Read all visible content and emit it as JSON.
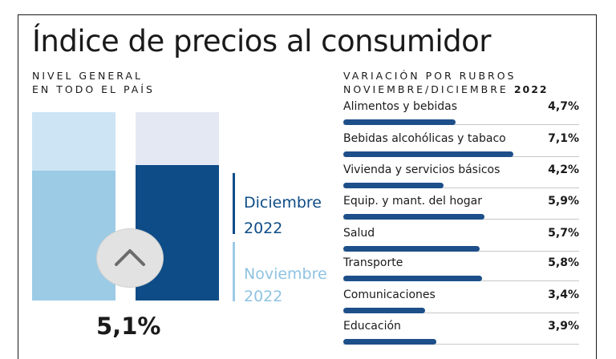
{
  "title": "Índice de precios al consumidor",
  "left_subtitle": [
    "NIVEL GENERAL",
    "EN TODO EL PAÍS"
  ],
  "right_subtitle": {
    "line1": "VARIACIÓN POR RUBROS",
    "line2": "NOVIEMBRE/DICIEMBRE",
    "year": "2022"
  },
  "legend": {
    "dec_month": "Diciembre",
    "dec_year": "2022",
    "nov_month": "Noviembre",
    "nov_year": "2022"
  },
  "general_value": "5,1%",
  "colors": {
    "dark_blue": "#0e4c87",
    "light_blue": "#9ccbe6",
    "pale_blue": "#cde4f4",
    "pale_gray": "#e4e8f2",
    "bar_blue": "#1d4f8a"
  },
  "icons": {
    "toggle": "chevron-up-icon"
  },
  "chart_data": [
    {
      "type": "bar",
      "series": [
        {
          "name": "Noviembre 2022",
          "value": 4.9
        },
        {
          "name": "Diciembre 2022",
          "value": 5.1
        }
      ],
      "ylim": [
        0,
        7.1
      ]
    },
    {
      "type": "bar",
      "orientation": "horizontal",
      "categories": [
        "Alimentos y bebidas",
        "Bebidas alcohólicas y tabaco",
        "Vivienda y servicios básicos",
        "Equip. y mant. del hogar",
        "Salud",
        "Transporte",
        "Comunicaciones",
        "Educación"
      ],
      "values": [
        4.7,
        7.1,
        4.2,
        5.9,
        5.7,
        5.8,
        3.4,
        3.9
      ],
      "value_labels": [
        "4,7%",
        "7,1%",
        "4,2%",
        "5,9%",
        "5,7%",
        "5,8%",
        "3,4%",
        "3,9%"
      ]
    }
  ]
}
